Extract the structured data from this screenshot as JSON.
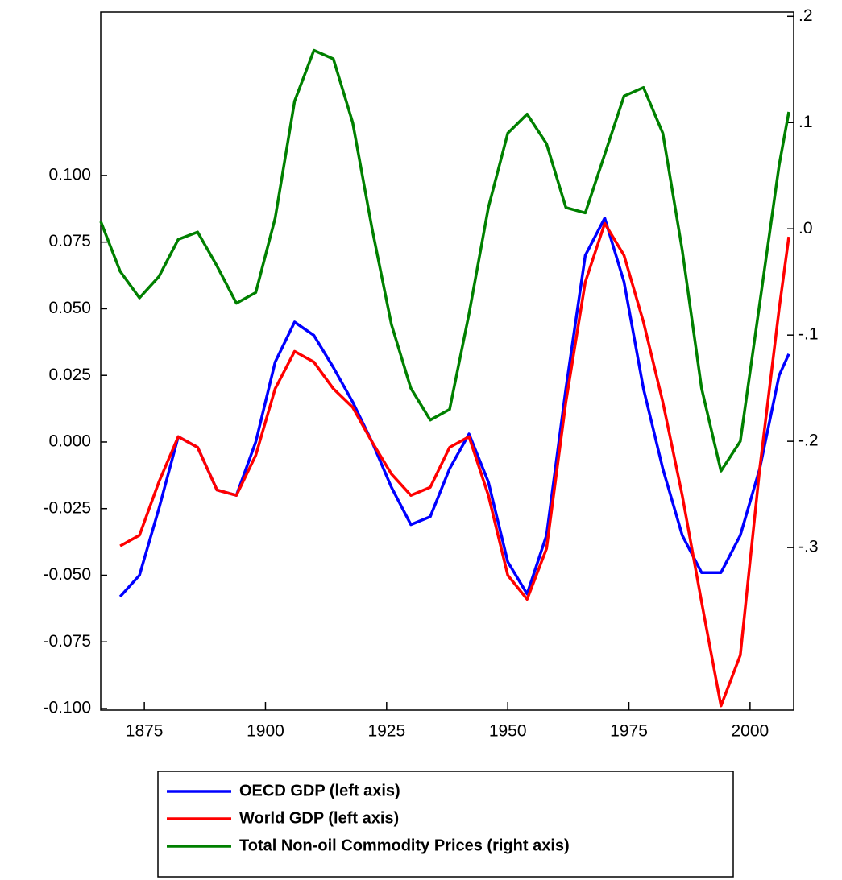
{
  "chart_data": {
    "type": "line",
    "x": [
      1866,
      1870,
      1874,
      1878,
      1882,
      1886,
      1890,
      1894,
      1898,
      1902,
      1906,
      1910,
      1914,
      1918,
      1922,
      1926,
      1930,
      1934,
      1938,
      1942,
      1946,
      1950,
      1954,
      1958,
      1962,
      1966,
      1970,
      1974,
      1978,
      1982,
      1986,
      1990,
      1994,
      1998,
      2002,
      2006,
      2008
    ],
    "xlim": [
      1866,
      2009
    ],
    "xticks": [
      1875,
      1900,
      1925,
      1950,
      1975,
      2000
    ],
    "ylim": [
      -0.1006,
      0.1613
    ],
    "yticks": [
      {
        "value": 0.1,
        "label": "0.100"
      },
      {
        "value": 0.075,
        "label": "0.075"
      },
      {
        "value": 0.05,
        "label": "0.050"
      },
      {
        "value": 0.025,
        "label": "0.025"
      },
      {
        "value": 0,
        "label": "0.000"
      },
      {
        "value": -0.025,
        "label": "-0.025"
      },
      {
        "value": -0.05,
        "label": "-0.050"
      },
      {
        "value": -0.075,
        "label": "-0.075"
      },
      {
        "value": -0.1,
        "label": "-0.100"
      }
    ],
    "y2lim": [
      -0.453,
      0.204
    ],
    "y2ticks": [
      {
        "value": 0.2,
        "label": ".2"
      },
      {
        "value": 0.1,
        "label": ".1"
      },
      {
        "value": 0,
        "label": ".0"
      },
      {
        "value": -0.1,
        "label": "-.1"
      },
      {
        "value": -0.2,
        "label": "-.2"
      },
      {
        "value": -0.3,
        "label": "-.3"
      }
    ],
    "series": [
      {
        "name": "OECD GDP (left axis)",
        "color": "#0000ff",
        "values": [
          null,
          -0.058,
          -0.05,
          -0.025,
          0.002,
          -0.002,
          -0.018,
          -0.02,
          0.0,
          0.03,
          0.045,
          0.04,
          0.028,
          0.015,
          0.0,
          -0.017,
          -0.031,
          -0.028,
          -0.01,
          0.003,
          -0.015,
          -0.045,
          -0.057,
          -0.035,
          0.02,
          0.07,
          0.084,
          0.06,
          0.02,
          -0.01,
          -0.035,
          -0.049,
          -0.049,
          -0.035,
          -0.01,
          0.025,
          0.033
        ]
      },
      {
        "name": "World GDP (left axis)",
        "color": "#ff0000",
        "values": [
          null,
          -0.039,
          -0.035,
          -0.015,
          0.002,
          -0.002,
          -0.018,
          -0.02,
          -0.005,
          0.02,
          0.034,
          0.03,
          0.02,
          0.013,
          0.0,
          -0.012,
          -0.02,
          -0.017,
          -0.002,
          0.002,
          -0.02,
          -0.05,
          -0.059,
          -0.04,
          0.015,
          0.06,
          0.082,
          0.07,
          0.045,
          0.015,
          -0.02,
          -0.06,
          -0.099,
          -0.08,
          -0.01,
          0.05,
          0.077
        ]
      },
      {
        "name": "Total Non-oil Commodity Prices (right axis)",
        "color": "#008000",
        "axis": "y2",
        "values": [
          0.007,
          -0.04,
          -0.065,
          -0.045,
          -0.01,
          -0.003,
          -0.035,
          -0.07,
          -0.06,
          0.01,
          0.12,
          0.168,
          0.16,
          0.1,
          0.0,
          -0.09,
          -0.15,
          -0.18,
          -0.17,
          -0.08,
          0.02,
          0.09,
          0.108,
          0.08,
          0.02,
          0.015,
          0.07,
          0.125,
          0.133,
          0.09,
          -0.02,
          -0.15,
          -0.228,
          -0.2,
          -0.07,
          0.06,
          0.11
        ]
      }
    ]
  }
}
